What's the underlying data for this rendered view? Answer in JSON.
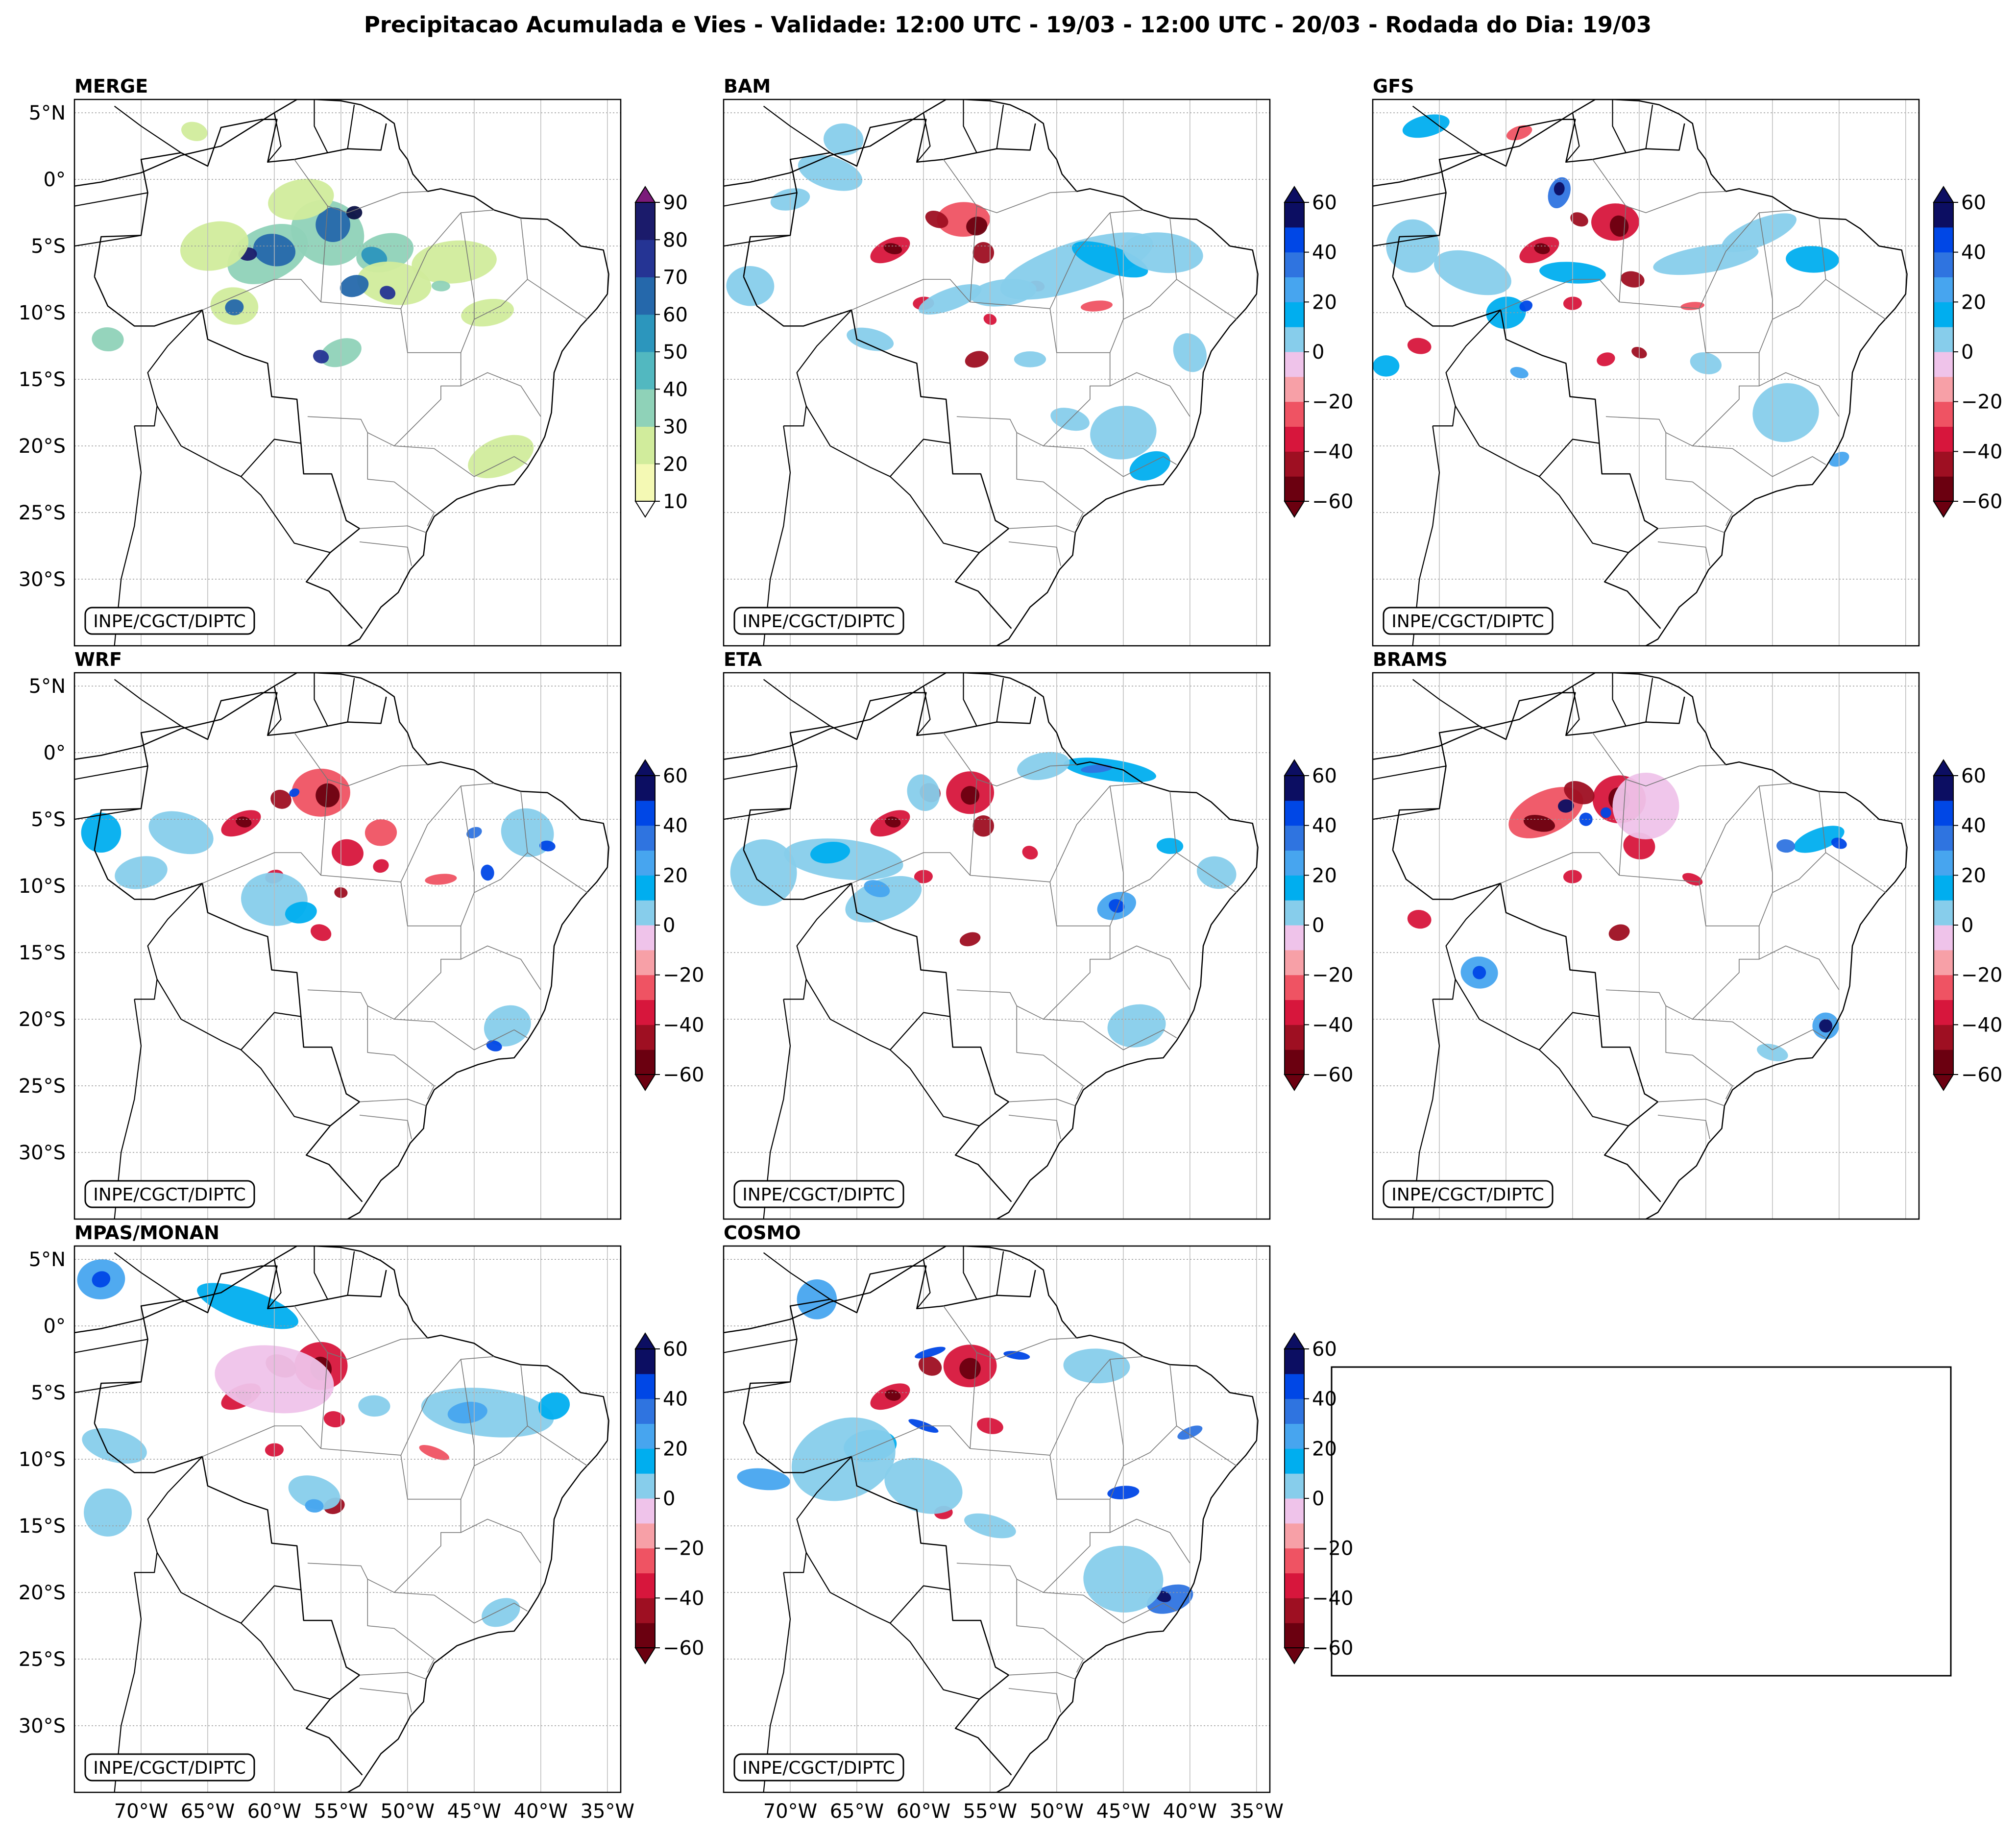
{
  "figure_title": "Precipitacao Acumulada e Vies - Validade: 12:00 UTC - 19/03 - 12:00 UTC - 20/03 - Rodada do Dia: 19/03",
  "credit": "INPE/CGCT/DIPTC",
  "lat_labels": [
    "5°N",
    "0°",
    "5°S",
    "10°S",
    "15°S",
    "20°S",
    "25°S",
    "30°S"
  ],
  "lon_labels": [
    "70°W",
    "65°W",
    "60°W",
    "55°W",
    "50°W",
    "45°W",
    "40°W",
    "35°W"
  ],
  "colors": {
    "merge": [
      "#f4f9b4",
      "#d1ec9c",
      "#8fd2b8",
      "#52b8c0",
      "#2c96bd",
      "#2568ab",
      "#253494",
      "#1b1b6b",
      "#0b1145",
      "#7b1b7a"
    ],
    "bias_neg": [
      "#6b0010",
      "#9e0f22",
      "#d7163c",
      "#ef5363",
      "#f7a0a7",
      "#efc3ea"
    ],
    "bias_pos": [
      "#87cdeb",
      "#00aeef",
      "#47a5ef",
      "#2f74e0",
      "#0047e6",
      "#0c0e62"
    ]
  },
  "panels": [
    {
      "name": "MERGE",
      "kind": "precip",
      "colorbar_ticks": [
        "10",
        "20",
        "30",
        "40",
        "50",
        "60",
        "70",
        "80",
        "90"
      ]
    },
    {
      "name": "BAM",
      "kind": "bias",
      "colorbar_ticks": [
        "−60",
        "−40",
        "−20",
        "0",
        "20",
        "40",
        "60"
      ]
    },
    {
      "name": "GFS",
      "kind": "bias",
      "colorbar_ticks": [
        "−60",
        "−40",
        "−20",
        "0",
        "20",
        "40",
        "60"
      ]
    },
    {
      "name": "WRF",
      "kind": "bias",
      "colorbar_ticks": [
        "−60",
        "−40",
        "−20",
        "0",
        "20",
        "40",
        "60"
      ]
    },
    {
      "name": "ETA",
      "kind": "bias",
      "colorbar_ticks": [
        "−60",
        "−40",
        "−20",
        "0",
        "20",
        "40",
        "60"
      ]
    },
    {
      "name": "BRAMS",
      "kind": "bias",
      "colorbar_ticks": [
        "−60",
        "−40",
        "−20",
        "0",
        "20",
        "40",
        "60"
      ]
    },
    {
      "name": "MPAS/MONAN",
      "kind": "bias",
      "colorbar_ticks": [
        "−60",
        "−40",
        "−20",
        "0",
        "20",
        "40",
        "60"
      ]
    },
    {
      "name": "COSMO",
      "kind": "bias",
      "colorbar_ticks": [
        "−60",
        "−40",
        "−20",
        "0",
        "20",
        "40",
        "60"
      ]
    }
  ]
}
